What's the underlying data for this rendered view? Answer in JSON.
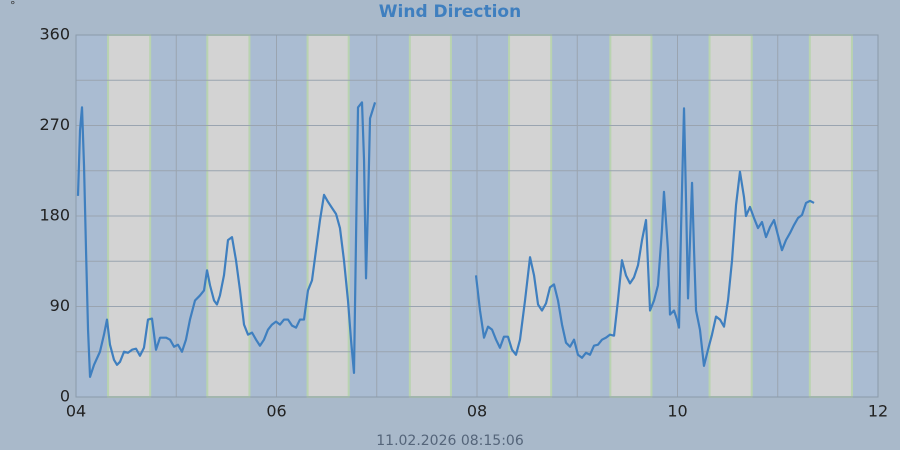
{
  "chart_data": {
    "type": "line",
    "title": "Wind Direction",
    "y_unit": "°",
    "footer": "11.02.2026 08:15:06",
    "color": "#3f7fbf",
    "grid": true,
    "xlim": [
      4,
      12
    ],
    "xticks": [
      {
        "value": 4,
        "label": "04"
      },
      {
        "value": 6,
        "label": "06"
      },
      {
        "value": 8,
        "label": "08"
      },
      {
        "value": 10,
        "label": "10"
      },
      {
        "value": 12,
        "label": "12"
      }
    ],
    "xminor": [
      5,
      7,
      9,
      11
    ],
    "ylim": [
      0,
      360
    ],
    "yticks": [
      0,
      90,
      180,
      270,
      360
    ],
    "yminor": [
      45,
      135,
      225,
      315
    ],
    "daylight": [
      [
        4.32,
        4.74
      ],
      [
        5.31,
        5.73
      ],
      [
        6.31,
        6.72
      ],
      [
        7.33,
        7.74
      ],
      [
        8.32,
        8.74
      ],
      [
        9.33,
        9.74
      ],
      [
        10.32,
        10.74
      ],
      [
        11.32,
        11.74
      ]
    ],
    "x": [
      4.02,
      4.04,
      4.06,
      4.08,
      4.1,
      4.12,
      4.14,
      4.18,
      4.239,
      4.279,
      4.309,
      4.339,
      4.379,
      4.409,
      4.439,
      4.479,
      4.519,
      4.559,
      4.599,
      4.638,
      4.678,
      4.718,
      4.758,
      4.798,
      4.838,
      4.898,
      4.938,
      4.978,
      5.017,
      5.057,
      5.097,
      5.137,
      5.187,
      5.237,
      5.277,
      5.307,
      5.337,
      5.377,
      5.406,
      5.436,
      5.476,
      5.516,
      5.556,
      5.596,
      5.636,
      5.676,
      5.716,
      5.756,
      5.796,
      5.835,
      5.875,
      5.915,
      5.955,
      5.995,
      6.035,
      6.075,
      6.115,
      6.155,
      6.195,
      6.234,
      6.274,
      6.314,
      6.354,
      6.394,
      6.434,
      6.474,
      6.514,
      6.554,
      6.594,
      6.633,
      6.673,
      6.713,
      6.743,
      6.773,
      6.813,
      6.853,
      6.873,
      6.893,
      6.913,
      6.933,
      6.983,
      7.5,
      7.99,
      8.03,
      8.07,
      8.11,
      8.15,
      8.19,
      8.229,
      8.269,
      8.309,
      8.349,
      8.389,
      8.429,
      8.479,
      8.529,
      8.569,
      8.609,
      8.648,
      8.688,
      8.728,
      8.768,
      8.808,
      8.848,
      8.888,
      8.928,
      8.968,
      9.007,
      9.047,
      9.087,
      9.127,
      9.167,
      9.207,
      9.247,
      9.287,
      9.327,
      9.367,
      9.406,
      9.446,
      9.486,
      9.526,
      9.566,
      9.606,
      9.646,
      9.686,
      9.726,
      9.766,
      9.805,
      9.845,
      9.865,
      9.905,
      9.925,
      9.965,
      9.995,
      10.015,
      10.035,
      10.065,
      10.085,
      10.105,
      10.125,
      10.145,
      10.165,
      10.185,
      10.224,
      10.264,
      10.304,
      10.344,
      10.384,
      10.424,
      10.464,
      10.504,
      10.544,
      10.584,
      10.623,
      10.663,
      10.683,
      10.723,
      10.763,
      10.803,
      10.843,
      10.883,
      10.923,
      10.963,
      11.002,
      11.042,
      11.082,
      11.122,
      11.162,
      11.202,
      11.242,
      11.282,
      11.322,
      11.362
    ],
    "values": [
      200,
      265,
      288,
      230,
      146,
      67,
      20,
      32,
      45,
      62,
      77,
      52,
      37,
      32,
      35,
      45,
      44,
      47,
      48,
      41,
      49,
      77,
      78,
      47,
      59,
      59,
      57,
      50,
      52,
      45,
      57,
      77,
      96,
      101,
      106,
      126,
      111,
      96,
      92,
      101,
      121,
      156,
      159,
      136,
      106,
      72,
      62,
      64,
      57,
      51,
      57,
      67,
      72,
      75,
      72,
      77,
      77,
      71,
      69,
      77,
      77,
      106,
      116,
      146,
      176,
      201,
      194,
      188,
      182,
      168,
      136,
      96,
      57,
      24,
      288,
      293,
      236,
      118,
      191,
      277,
      293,
      null,
      121,
      86,
      59,
      70,
      67,
      57,
      49,
      60,
      60,
      47,
      42,
      57,
      96,
      139,
      121,
      92,
      86,
      93,
      109,
      112,
      96,
      72,
      54,
      50,
      57,
      42,
      39,
      44,
      42,
      51,
      52,
      57,
      59,
      62,
      61,
      96,
      136,
      121,
      113,
      119,
      131,
      156,
      176,
      86,
      96,
      111,
      166,
      204,
      146,
      82,
      86,
      77,
      69,
      166,
      287,
      196,
      98,
      156,
      213,
      146,
      86,
      67,
      31,
      47,
      62,
      80,
      77,
      70,
      96,
      136,
      191,
      224,
      199,
      180,
      189,
      178,
      168,
      174,
      159,
      169,
      176,
      161,
      146,
      156,
      163,
      171,
      178,
      181,
      193,
      195,
      193
    ]
  }
}
